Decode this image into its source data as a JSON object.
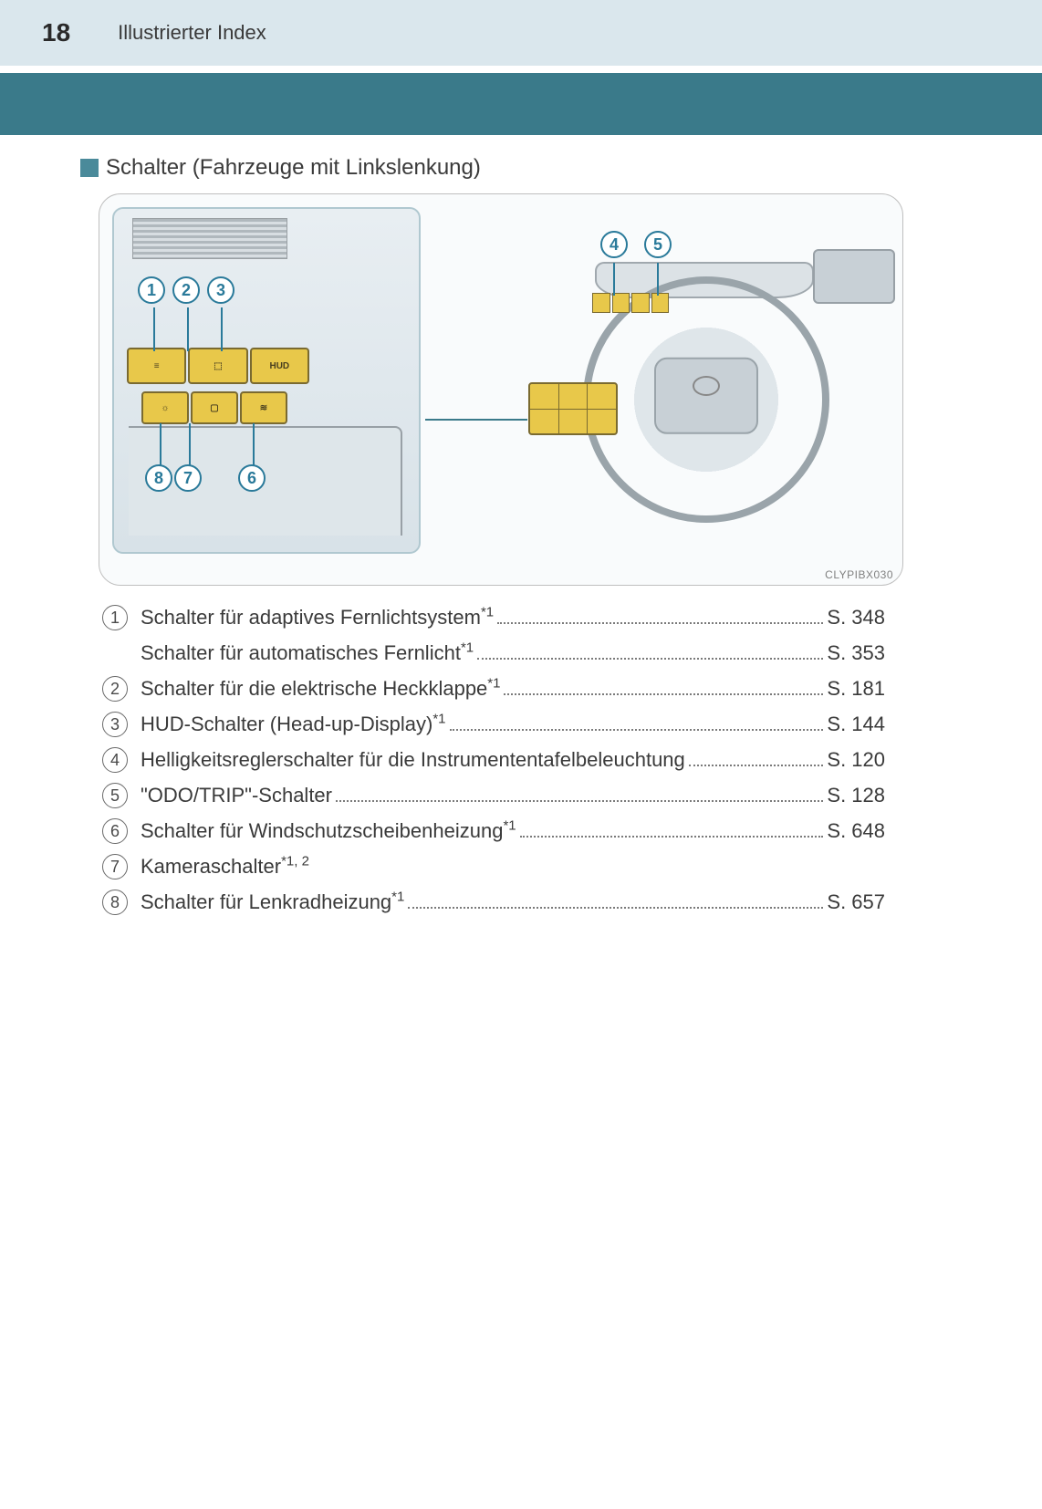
{
  "page_number": "18",
  "header_title": "Illustrierter Index",
  "section_title": "Schalter (Fahrzeuge mit Linkslenkung)",
  "diagram_code": "CLYPIBX030",
  "callouts": {
    "c1": "1",
    "c2": "2",
    "c3": "3",
    "c4": "4",
    "c5": "5",
    "c6": "6",
    "c7": "7",
    "c8": "8"
  },
  "btn_hud": "HUD",
  "items": [
    {
      "num": "1",
      "text": "Schalter für adaptives Fernlichtsystem",
      "sup": "*1",
      "page": "S. 348"
    },
    {
      "num": "",
      "text": "Schalter für automatisches Fernlicht",
      "sup": "*1",
      "page": "S. 353"
    },
    {
      "num": "2",
      "text": "Schalter für die elektrische Heckklappe",
      "sup": "*1",
      "page": "S. 181"
    },
    {
      "num": "3",
      "text": "HUD-Schalter (Head-up-Display)",
      "sup": "*1",
      "page": "S. 144"
    },
    {
      "num": "4",
      "text": "Helligkeitsreglerschalter für die Instrumententafelbeleuchtung",
      "sup": "",
      "page": "S. 120"
    },
    {
      "num": "5",
      "text": "\"ODO/TRIP\"-Schalter",
      "sup": "",
      "page": "S. 128"
    },
    {
      "num": "6",
      "text": "Schalter für Windschutzscheibenheizung",
      "sup": "*1",
      "page": "S. 648"
    },
    {
      "num": "7",
      "text": "Kameraschalter",
      "sup": "*1, 2",
      "page": ""
    },
    {
      "num": "8",
      "text": "Schalter für Lenkradheizung",
      "sup": "*1",
      "page": "S. 657"
    }
  ],
  "colors": {
    "header_bg": "#dae7ed",
    "banner_bg": "#3a7a8a",
    "bullet": "#4a8a9a",
    "callout": "#2a7a9a",
    "highlight": "#e8c84a"
  }
}
